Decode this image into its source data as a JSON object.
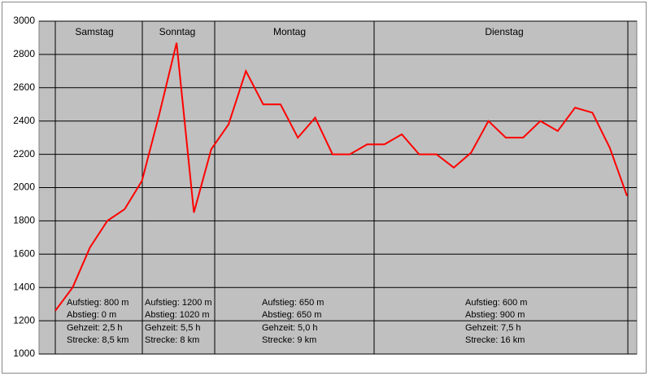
{
  "chart_data": {
    "type": "line",
    "series": [
      {
        "name": null,
        "color": "#ff0000",
        "values": [
          1260,
          1400,
          1640,
          1800,
          1870,
          2040,
          2440,
          2870,
          1850,
          2230,
          2380,
          2700,
          2500,
          2500,
          2300,
          2420,
          2200,
          2200,
          2260,
          2260,
          2320,
          2200,
          2200,
          2120,
          2210,
          2400,
          2300,
          2300,
          2400,
          2340,
          2480,
          2450,
          2240,
          1950
        ]
      }
    ],
    "ylim": [
      1000,
      3000
    ],
    "yticks": [
      1000,
      1200,
      1400,
      1600,
      1800,
      2000,
      2200,
      2400,
      2600,
      2800,
      3000
    ],
    "grid": true,
    "days": [
      {
        "name": "Samstag",
        "stats": [
          "Aufstieg: 800 m",
          "Abstieg: 0 m",
          "Gehzeit: 2,5 h",
          "Strecke: 8,5 km"
        ]
      },
      {
        "name": "Sonntag",
        "stats": [
          "Aufstieg: 1200 m",
          "Abstieg: 1020 m",
          "Gehzeit: 5,5 h",
          "Strecke: 8 km"
        ]
      },
      {
        "name": "Montag",
        "stats": [
          "Aufstieg: 650 m",
          "Abstieg: 650 m",
          "Gehzeit: 5,0 h",
          "Strecke: 9 km"
        ]
      },
      {
        "name": "Dienstag",
        "stats": [
          "Aufstieg: 600 m",
          "Abstieg: 900 m",
          "Gehzeit: 7,5 h",
          "Strecke: 16 km"
        ]
      }
    ]
  }
}
